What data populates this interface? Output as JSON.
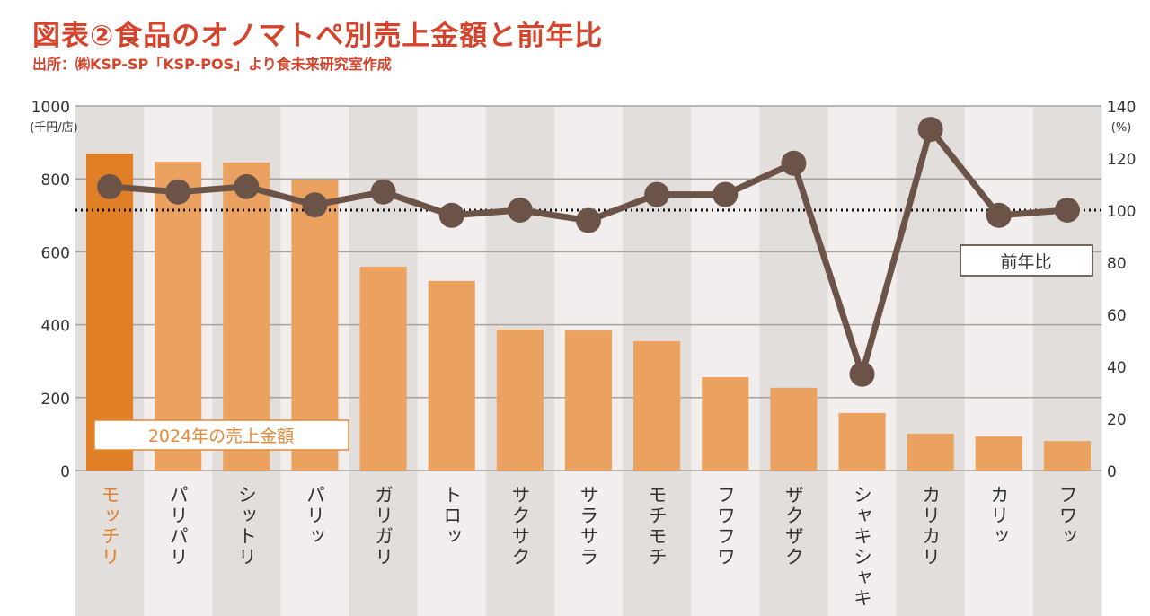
{
  "title": "図表②食品のオノマトペ別売上金額と前年比",
  "subtitle": "出所：㈱KSP-SP「KSP-POS」より食未来研究室作成",
  "chart_data": {
    "type": "bar+line",
    "categories": [
      "モッチリ",
      "パリパリ",
      "シットリ",
      "パリッ",
      "ガリガリ",
      "トロッ",
      "サクサク",
      "サラサラ",
      "モチモチ",
      "フワフワ",
      "ザクザク",
      "シャキシャキ",
      "カリカリ",
      "カリッ",
      "フワッ"
    ],
    "series": [
      {
        "name": "2024年の売上金額",
        "type": "bar",
        "axis": "left",
        "values": [
          869,
          847,
          845,
          798,
          559,
          520,
          387,
          384,
          355,
          256,
          227,
          158,
          101,
          94,
          81
        ]
      },
      {
        "name": "前年比",
        "type": "line",
        "axis": "right",
        "values": [
          109,
          107,
          109,
          102,
          107,
          98,
          100,
          96,
          106,
          106,
          118,
          37,
          131,
          98,
          100
        ]
      }
    ],
    "left_axis": {
      "unit": "(千円/店)",
      "ylim": [
        0,
        1000
      ],
      "ticks": [
        0,
        200,
        400,
        600,
        800,
        1000
      ]
    },
    "right_axis": {
      "unit": "(%)",
      "ylim": [
        0,
        140
      ],
      "ticks": [
        0,
        20,
        40,
        60,
        80,
        100,
        120,
        140
      ]
    },
    "reference_line": 100,
    "highlight_category": "モッチリ",
    "grid": true,
    "colors": {
      "bar": "#eba260",
      "bar_highlight": "#e07f25",
      "line": "#6b5447",
      "text_accent": "#d5432b",
      "band_dark": "#e2dedc",
      "band_light": "#f1eeed"
    }
  }
}
